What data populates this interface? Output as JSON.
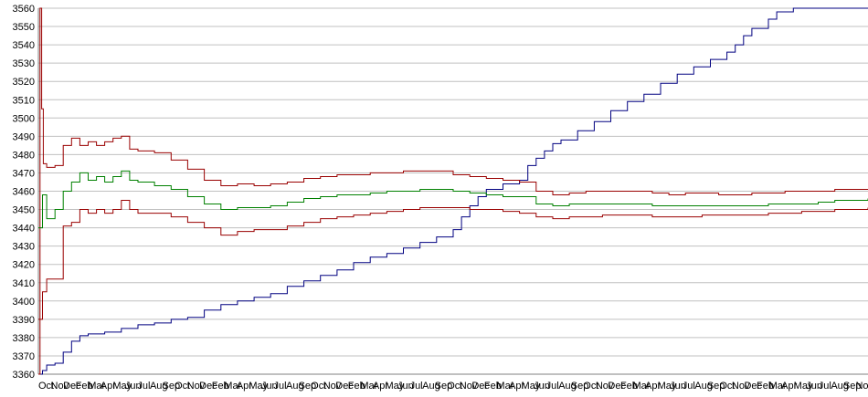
{
  "chart_data": {
    "type": "line",
    "title": "",
    "xlabel": "",
    "ylabel": "",
    "ylim": [
      3360,
      3560
    ],
    "yticks": [
      3360,
      3370,
      3380,
      3390,
      3400,
      3410,
      3420,
      3430,
      3440,
      3450,
      3460,
      3470,
      3480,
      3490,
      3500,
      3510,
      3520,
      3530,
      3540,
      3550,
      3560
    ],
    "grid": "horizontal",
    "legend": "none",
    "x_tick_labels": [
      "Oct",
      "Nov",
      "Dec",
      "Feb",
      "Mar",
      "Apr",
      "May",
      "Jun",
      "Jul",
      "Aug",
      "Sep",
      "Oct",
      "Nov",
      "Dec",
      "Feb",
      "Mar",
      "Apr",
      "May",
      "Jun",
      "Jul",
      "Aug",
      "Sep",
      "Oct",
      "Nov",
      "Dec",
      "Feb",
      "Mar",
      "Apr",
      "May",
      "Jun",
      "Jul",
      "Aug",
      "Sep",
      "Oct",
      "Nov",
      "Dec",
      "Feb",
      "Mar",
      "Apr",
      "May",
      "Jun",
      "Jul",
      "Aug",
      "Sep",
      "Oct",
      "Nov",
      "Dec",
      "Feb",
      "Mar",
      "Apr",
      "May",
      "Jun",
      "Jul",
      "Aug",
      "Sep",
      "Oct",
      "Nov",
      "Dec",
      "Feb",
      "Mar",
      "Apr",
      "May",
      "Jun",
      "Jul",
      "Aug",
      "Sep",
      "No"
    ],
    "x_index_range": [
      0,
      100
    ],
    "series": [
      {
        "color": "#000080",
        "points": [
          [
            0,
            3360
          ],
          [
            0.5,
            3362
          ],
          [
            1,
            3365
          ],
          [
            2,
            3366
          ],
          [
            3,
            3372
          ],
          [
            4,
            3378
          ],
          [
            5,
            3381
          ],
          [
            6,
            3382
          ],
          [
            8,
            3383
          ],
          [
            10,
            3385
          ],
          [
            12,
            3387
          ],
          [
            14,
            3388
          ],
          [
            16,
            3390
          ],
          [
            18,
            3391
          ],
          [
            20,
            3395
          ],
          [
            22,
            3398
          ],
          [
            24,
            3400
          ],
          [
            26,
            3402
          ],
          [
            28,
            3404
          ],
          [
            30,
            3408
          ],
          [
            32,
            3411
          ],
          [
            34,
            3414
          ],
          [
            36,
            3417
          ],
          [
            38,
            3421
          ],
          [
            40,
            3424
          ],
          [
            42,
            3426
          ],
          [
            44,
            3429
          ],
          [
            46,
            3432
          ],
          [
            48,
            3435
          ],
          [
            50,
            3439
          ],
          [
            51,
            3446
          ],
          [
            52,
            3452
          ],
          [
            53,
            3457
          ],
          [
            54,
            3461
          ],
          [
            56,
            3464
          ],
          [
            58,
            3466
          ],
          [
            59,
            3474
          ],
          [
            60,
            3478
          ],
          [
            61,
            3482
          ],
          [
            62,
            3486
          ],
          [
            63,
            3488
          ],
          [
            65,
            3493
          ],
          [
            67,
            3498
          ],
          [
            69,
            3504
          ],
          [
            71,
            3509
          ],
          [
            73,
            3513
          ],
          [
            75,
            3519
          ],
          [
            77,
            3524
          ],
          [
            79,
            3528
          ],
          [
            81,
            3532
          ],
          [
            83,
            3536
          ],
          [
            84,
            3540
          ],
          [
            85,
            3545
          ],
          [
            86,
            3549
          ],
          [
            88,
            3554
          ],
          [
            89,
            3558
          ],
          [
            91,
            3560
          ],
          [
            100,
            3560
          ]
        ]
      },
      {
        "color": "#990000",
        "points": [
          [
            0,
            3360
          ],
          [
            0.2,
            3560
          ],
          [
            0.4,
            3505
          ],
          [
            0.6,
            3475
          ],
          [
            1,
            3473
          ],
          [
            2,
            3474
          ],
          [
            3,
            3485
          ],
          [
            4,
            3489
          ],
          [
            5,
            3485
          ],
          [
            6,
            3487
          ],
          [
            7,
            3485
          ],
          [
            8,
            3487
          ],
          [
            9,
            3489
          ],
          [
            10,
            3490
          ],
          [
            11,
            3483
          ],
          [
            12,
            3482
          ],
          [
            14,
            3481
          ],
          [
            16,
            3477
          ],
          [
            18,
            3472
          ],
          [
            20,
            3466
          ],
          [
            22,
            3463
          ],
          [
            24,
            3464
          ],
          [
            26,
            3463
          ],
          [
            28,
            3464
          ],
          [
            30,
            3465
          ],
          [
            32,
            3467
          ],
          [
            34,
            3468
          ],
          [
            36,
            3469
          ],
          [
            38,
            3469
          ],
          [
            40,
            3470
          ],
          [
            42,
            3470
          ],
          [
            44,
            3471
          ],
          [
            46,
            3471
          ],
          [
            48,
            3471
          ],
          [
            50,
            3469
          ],
          [
            52,
            3468
          ],
          [
            54,
            3467
          ],
          [
            56,
            3466
          ],
          [
            58,
            3465
          ],
          [
            60,
            3460
          ],
          [
            62,
            3458
          ],
          [
            64,
            3459
          ],
          [
            66,
            3460
          ],
          [
            68,
            3460
          ],
          [
            70,
            3460
          ],
          [
            72,
            3460
          ],
          [
            74,
            3459
          ],
          [
            76,
            3458
          ],
          [
            78,
            3459
          ],
          [
            80,
            3459
          ],
          [
            82,
            3458
          ],
          [
            84,
            3458
          ],
          [
            86,
            3459
          ],
          [
            88,
            3459
          ],
          [
            90,
            3460
          ],
          [
            92,
            3460
          ],
          [
            94,
            3460
          ],
          [
            96,
            3461
          ],
          [
            98,
            3461
          ],
          [
            100,
            3461
          ]
        ]
      },
      {
        "color": "#008000",
        "points": [
          [
            0,
            3440
          ],
          [
            0.5,
            3458
          ],
          [
            1,
            3445
          ],
          [
            2,
            3450
          ],
          [
            3,
            3460
          ],
          [
            4,
            3465
          ],
          [
            5,
            3470
          ],
          [
            6,
            3466
          ],
          [
            7,
            3468
          ],
          [
            8,
            3465
          ],
          [
            9,
            3468
          ],
          [
            10,
            3471
          ],
          [
            11,
            3466
          ],
          [
            12,
            3465
          ],
          [
            14,
            3463
          ],
          [
            16,
            3461
          ],
          [
            18,
            3457
          ],
          [
            20,
            3453
          ],
          [
            22,
            3450
          ],
          [
            24,
            3451
          ],
          [
            26,
            3451
          ],
          [
            28,
            3452
          ],
          [
            30,
            3454
          ],
          [
            32,
            3456
          ],
          [
            34,
            3457
          ],
          [
            36,
            3458
          ],
          [
            38,
            3458
          ],
          [
            40,
            3459
          ],
          [
            42,
            3460
          ],
          [
            44,
            3460
          ],
          [
            46,
            3461
          ],
          [
            48,
            3461
          ],
          [
            50,
            3460
          ],
          [
            52,
            3459
          ],
          [
            54,
            3458
          ],
          [
            56,
            3457
          ],
          [
            58,
            3457
          ],
          [
            60,
            3453
          ],
          [
            62,
            3452
          ],
          [
            64,
            3453
          ],
          [
            66,
            3453
          ],
          [
            68,
            3453
          ],
          [
            70,
            3453
          ],
          [
            72,
            3453
          ],
          [
            74,
            3452
          ],
          [
            76,
            3452
          ],
          [
            78,
            3452
          ],
          [
            80,
            3452
          ],
          [
            82,
            3452
          ],
          [
            84,
            3452
          ],
          [
            86,
            3452
          ],
          [
            88,
            3453
          ],
          [
            90,
            3453
          ],
          [
            92,
            3453
          ],
          [
            94,
            3454
          ],
          [
            96,
            3455
          ],
          [
            98,
            3455
          ],
          [
            100,
            3456
          ]
        ]
      },
      {
        "color": "#990000",
        "points": [
          [
            0,
            3390
          ],
          [
            0.5,
            3405
          ],
          [
            1,
            3412
          ],
          [
            2,
            3412
          ],
          [
            3,
            3441
          ],
          [
            4,
            3443
          ],
          [
            5,
            3450
          ],
          [
            6,
            3448
          ],
          [
            7,
            3450
          ],
          [
            8,
            3448
          ],
          [
            9,
            3450
          ],
          [
            10,
            3455
          ],
          [
            11,
            3450
          ],
          [
            12,
            3448
          ],
          [
            14,
            3448
          ],
          [
            16,
            3446
          ],
          [
            18,
            3443
          ],
          [
            20,
            3440
          ],
          [
            22,
            3436
          ],
          [
            24,
            3438
          ],
          [
            26,
            3439
          ],
          [
            28,
            3439
          ],
          [
            30,
            3441
          ],
          [
            32,
            3443
          ],
          [
            34,
            3445
          ],
          [
            36,
            3446
          ],
          [
            38,
            3447
          ],
          [
            40,
            3448
          ],
          [
            42,
            3449
          ],
          [
            44,
            3450
          ],
          [
            46,
            3451
          ],
          [
            48,
            3451
          ],
          [
            50,
            3451
          ],
          [
            52,
            3450
          ],
          [
            54,
            3450
          ],
          [
            56,
            3449
          ],
          [
            58,
            3448
          ],
          [
            60,
            3446
          ],
          [
            62,
            3445
          ],
          [
            64,
            3446
          ],
          [
            66,
            3446
          ],
          [
            68,
            3447
          ],
          [
            70,
            3447
          ],
          [
            72,
            3447
          ],
          [
            74,
            3446
          ],
          [
            76,
            3446
          ],
          [
            78,
            3446
          ],
          [
            80,
            3447
          ],
          [
            82,
            3447
          ],
          [
            84,
            3447
          ],
          [
            86,
            3447
          ],
          [
            88,
            3448
          ],
          [
            90,
            3448
          ],
          [
            92,
            3449
          ],
          [
            94,
            3449
          ],
          [
            96,
            3450
          ],
          [
            98,
            3450
          ],
          [
            100,
            3451
          ]
        ]
      }
    ]
  }
}
